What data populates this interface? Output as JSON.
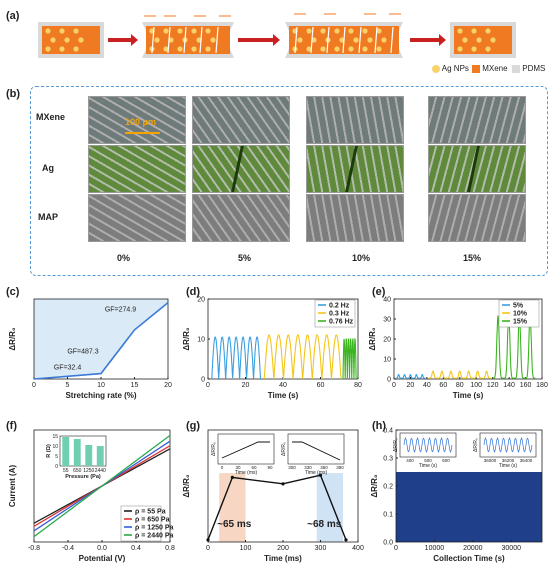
{
  "panels": {
    "a": "(a)",
    "b": "(b)",
    "c": "(c)",
    "d": "(d)",
    "e": "(e)",
    "f": "(f)",
    "g": "(g)",
    "h": "(h)"
  },
  "schematic": {
    "legend": [
      "Ag NPs",
      "MXene",
      "PDMS"
    ],
    "colors": {
      "mxene": "#f07a22",
      "ag": "#f7d26a",
      "pdms": "#d9d9d9",
      "arrow": "#cc1f1f"
    }
  },
  "micrographs": {
    "row_labels": [
      "MXene",
      "Ag",
      "MAP"
    ],
    "col_labels": [
      "0%",
      "5%",
      "10%",
      "15%"
    ],
    "scale_bar": "100 μm",
    "colors": {
      "mxene": "#6f7a7a",
      "ag": "#5f8a3b",
      "map": "#7d7d7d"
    }
  },
  "chart_data": [
    {
      "panel": "c",
      "type": "line",
      "x": [
        0,
        5,
        10,
        15,
        20
      ],
      "y": [
        0,
        1.5,
        3,
        27,
        42
      ],
      "xlabel": "Stretching rate (%)",
      "ylabel": "ΔR/R₀",
      "xlim": [
        0,
        20
      ],
      "xticks": [
        0,
        5,
        10,
        15,
        20
      ],
      "annotations": [
        "GF=32.4",
        "GF=487.3",
        "GF=274.9"
      ],
      "grid": false,
      "shaded": true,
      "color": "#3a7bd5"
    },
    {
      "panel": "d",
      "type": "line",
      "xlabel": "Time (s)",
      "ylabel": "ΔR/R₀",
      "xlim": [
        0,
        80
      ],
      "ylim": [
        0,
        20
      ],
      "xticks": [
        0,
        20,
        40,
        60,
        80
      ],
      "yticks": [
        0,
        10,
        20
      ],
      "legend": "top-right",
      "series": [
        {
          "name": "0.2 Hz",
          "color": "#3aa0e0",
          "t_start": 2,
          "t_end": 28,
          "peaks": 7,
          "peak": 10.5
        },
        {
          "name": "0.3 Hz",
          "color": "#f5c518",
          "t_start": 30,
          "t_end": 71,
          "peaks": 8,
          "peak": 11
        },
        {
          "name": "0.76 Hz",
          "color": "#3cb521",
          "t_start": 72,
          "t_end": 79,
          "peaks": 6,
          "peak": 10
        }
      ]
    },
    {
      "panel": "e",
      "type": "line",
      "xlabel": "Time (s)",
      "ylabel": "ΔR/R₀",
      "xlim": [
        0,
        180
      ],
      "ylim": [
        0,
        40
      ],
      "xticks": [
        0,
        20,
        40,
        60,
        80,
        100,
        120,
        140,
        160,
        180
      ],
      "yticks": [
        0,
        10,
        20,
        30,
        40
      ],
      "legend": "top-right",
      "series": [
        {
          "name": "5%",
          "color": "#3aa0e0",
          "t_start": 2,
          "t_end": 38,
          "peaks": 5,
          "peak": 1.8
        },
        {
          "name": "10%",
          "color": "#f5c518",
          "t_start": 42,
          "t_end": 118,
          "peaks": 7,
          "peak": 3.5
        },
        {
          "name": "15%",
          "color": "#3cb521",
          "t_start": 120,
          "t_end": 172,
          "peaks": 4,
          "peak": 31
        }
      ]
    },
    {
      "panel": "f",
      "type": "line",
      "xlabel": "Potential (V)",
      "ylabel": "Current (A)",
      "xlim": [
        -0.8,
        0.8
      ],
      "xticks": [
        -0.8,
        -0.4,
        0.0,
        0.4,
        0.8
      ],
      "xticklabels": [
        "-0.8",
        "-0.4",
        "0.0",
        "0.4",
        "0.8"
      ],
      "legend": "bottom-right",
      "series": [
        {
          "name": "ρ = 55 Pa",
          "color": "#222222",
          "slope": 0.083
        },
        {
          "name": "ρ = 650 Pa",
          "color": "#d93636",
          "slope": 0.09
        },
        {
          "name": "ρ = 1250 Pa",
          "color": "#3a5bd9",
          "slope": 0.1
        },
        {
          "name": "ρ = 2440 Pa",
          "color": "#2aa84a",
          "slope": 0.113
        }
      ],
      "inset": {
        "type": "bar",
        "xlabel": "Pressure (Pa)",
        "ylabel": "R (Ω)",
        "categories": [
          "55",
          "650",
          "1250",
          "2440"
        ],
        "values": [
          14.5,
          13.5,
          10.5,
          10.0
        ],
        "ylim": [
          0,
          15
        ],
        "yticks": [
          0,
          5,
          10,
          15
        ],
        "color": "#6fcfb3"
      }
    },
    {
      "panel": "g",
      "type": "line",
      "xlabel": "Time (ms)",
      "ylabel": "ΔR/R₀",
      "xlim": [
        0,
        400
      ],
      "xticks": [
        0,
        100,
        200,
        300,
        400
      ],
      "x": [
        0,
        65,
        200,
        300,
        368
      ],
      "y": [
        0.05,
        1.5,
        1.35,
        1.55,
        0.05
      ],
      "annotations": [
        "~65 ms",
        "~68 ms"
      ],
      "insets": [
        {
          "xlabel": "Time (ms)",
          "xticks": [
            0,
            30,
            60,
            90
          ],
          "ylabel": "ΔR/R₀"
        },
        {
          "xlabel": "Time (ms)",
          "xticks": [
            300,
            330,
            360,
            390
          ],
          "ylabel": "ΔR/R₀"
        }
      ]
    },
    {
      "panel": "h",
      "type": "line",
      "xlabel": "Collection Time (s)",
      "ylabel": "ΔR/R₀",
      "xlim": [
        0,
        38000
      ],
      "ylim": [
        0,
        0.4
      ],
      "xticks": [
        0,
        10000,
        20000,
        30000
      ],
      "yticks": [
        0.0,
        0.1,
        0.2,
        0.3,
        0.4
      ],
      "yticklabels": [
        "0.0",
        "0.1",
        "0.2",
        "0.3",
        "0.4"
      ],
      "band": [
        0,
        0.25
      ],
      "color": "#1f3f8a",
      "insets": [
        {
          "xlabel": "Time (s)",
          "xticks": [
            400,
            500,
            600
          ],
          "ylabel": "ΔR/R₀"
        },
        {
          "xlabel": "Time (s)",
          "xticks": [
            36000,
            36200,
            36400
          ],
          "ylabel": "ΔR/R₀"
        }
      ]
    }
  ]
}
